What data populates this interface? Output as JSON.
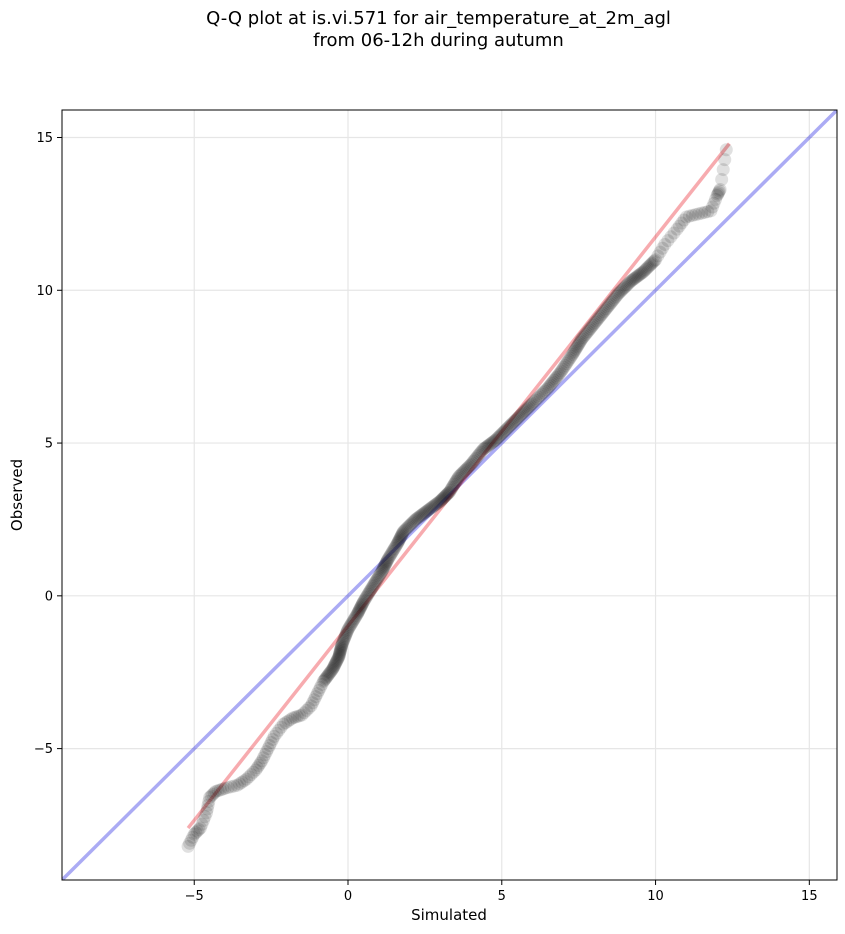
{
  "chart_data": {
    "type": "scatter",
    "title_line1": "Q-Q plot at is.vi.571 for air_temperature_at_2m_agl",
    "title_line2": "from 06-12h during autumn",
    "xlabel": "Simulated",
    "ylabel": "Observed",
    "xlim": [
      -9.3,
      15.9
    ],
    "ylim": [
      -9.3,
      15.9
    ],
    "xticks": [
      -5,
      0,
      5,
      10,
      15
    ],
    "yticks": [
      -5,
      0,
      5,
      10,
      15
    ],
    "xtick_labels": [
      "−5",
      "0",
      "5",
      "10",
      "15"
    ],
    "ytick_labels": [
      "−5",
      "0",
      "5",
      "10",
      "15"
    ],
    "grid": true,
    "colors": {
      "points": "#000000",
      "identity_line": "#0000dd",
      "fit_line": "#e8000b"
    },
    "identity_line": {
      "x": [
        -9.3,
        15.9
      ],
      "y": [
        -9.3,
        15.9
      ]
    },
    "fit_line": {
      "x": [
        -5.2,
        12.4
      ],
      "y": [
        -7.6,
        14.8
      ]
    },
    "points_anchor": [
      [
        -5.2,
        -8.2
      ],
      [
        -5.0,
        -7.8
      ],
      [
        -4.8,
        -7.6
      ],
      [
        -4.6,
        -7.1
      ],
      [
        -4.5,
        -6.6
      ],
      [
        -4.3,
        -6.4
      ],
      [
        -4.0,
        -6.3
      ],
      [
        -3.6,
        -6.2
      ],
      [
        -3.3,
        -6.0
      ],
      [
        -3.0,
        -5.7
      ],
      [
        -2.8,
        -5.4
      ],
      [
        -2.6,
        -5.0
      ],
      [
        -2.4,
        -4.6
      ],
      [
        -2.1,
        -4.2
      ],
      [
        -1.8,
        -4.0
      ],
      [
        -1.5,
        -3.9
      ],
      [
        -1.2,
        -3.6
      ],
      [
        -1.0,
        -3.2
      ],
      [
        -0.8,
        -2.8
      ],
      [
        -0.5,
        -2.4
      ],
      [
        -0.3,
        -2.0
      ],
      [
        -0.2,
        -1.6
      ],
      [
        0.0,
        -1.1
      ],
      [
        0.3,
        -0.6
      ],
      [
        0.5,
        -0.2
      ],
      [
        0.8,
        0.3
      ],
      [
        1.1,
        0.8
      ],
      [
        1.3,
        1.2
      ],
      [
        1.6,
        1.7
      ],
      [
        1.8,
        2.1
      ],
      [
        2.2,
        2.5
      ],
      [
        2.6,
        2.8
      ],
      [
        3.0,
        3.1
      ],
      [
        3.3,
        3.4
      ],
      [
        3.6,
        3.9
      ],
      [
        4.0,
        4.3
      ],
      [
        4.4,
        4.8
      ],
      [
        4.8,
        5.1
      ],
      [
        5.2,
        5.5
      ],
      [
        5.6,
        5.9
      ],
      [
        6.0,
        6.3
      ],
      [
        6.5,
        6.8
      ],
      [
        6.9,
        7.3
      ],
      [
        7.3,
        7.9
      ],
      [
        7.6,
        8.4
      ],
      [
        8.0,
        8.9
      ],
      [
        8.4,
        9.4
      ],
      [
        8.8,
        9.9
      ],
      [
        9.2,
        10.3
      ],
      [
        9.6,
        10.6
      ],
      [
        10.0,
        11.0
      ],
      [
        10.3,
        11.5
      ],
      [
        10.7,
        12.0
      ],
      [
        11.0,
        12.4
      ],
      [
        11.4,
        12.5
      ],
      [
        11.8,
        12.6
      ],
      [
        12.0,
        13.1
      ],
      [
        12.1,
        13.3
      ],
      [
        12.3,
        14.6
      ]
    ]
  }
}
